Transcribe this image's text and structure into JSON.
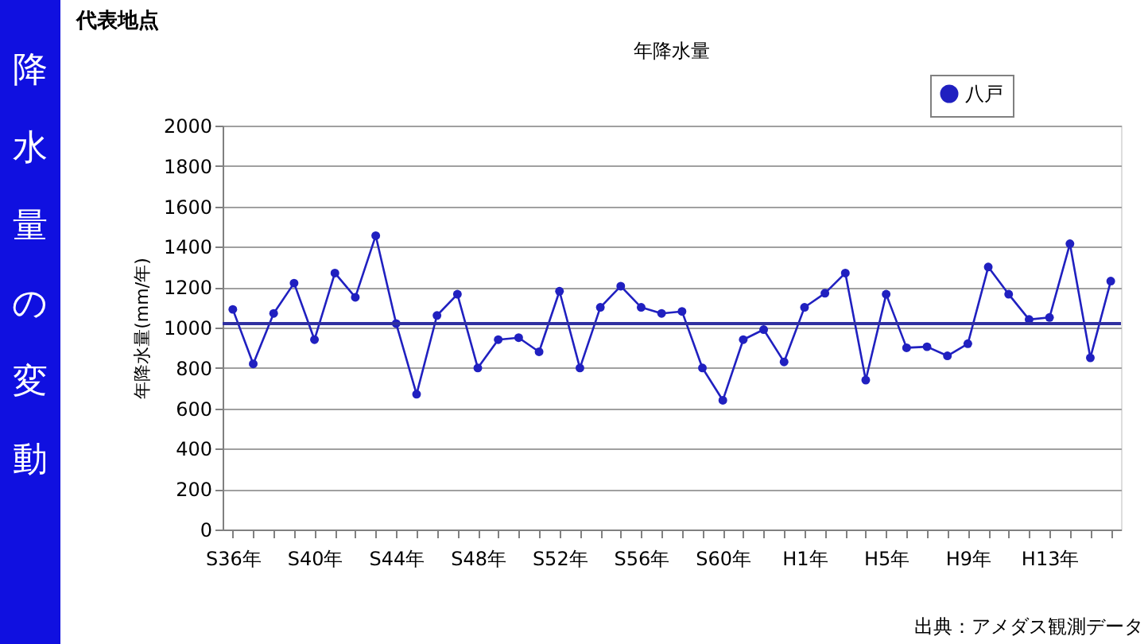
{
  "chart_data": {
    "type": "line",
    "title": "年降水量",
    "ylabel": "年降水量(mm/年)",
    "annotations": [
      "降水量の変動",
      "代表地点",
      "出典：アメダス観測データ"
    ],
    "categories": [
      "S36年",
      null,
      null,
      null,
      "S40年",
      null,
      null,
      null,
      "S44年",
      null,
      null,
      null,
      "S48年",
      null,
      null,
      null,
      "S52年",
      null,
      null,
      null,
      "S56年",
      null,
      null,
      null,
      "S60年",
      null,
      null,
      null,
      "H1年",
      null,
      null,
      null,
      "H5年",
      null,
      null,
      null,
      "H9年",
      null,
      null,
      null,
      "H13年",
      null,
      null,
      null
    ],
    "series": [
      {
        "name": "八戸",
        "color": "#2020c0",
        "values": [
          1090,
          820,
          1070,
          1220,
          940,
          1270,
          1150,
          1455,
          1020,
          670,
          1060,
          1165,
          800,
          940,
          950,
          880,
          1180,
          800,
          1100,
          1205,
          1100,
          1070,
          1080,
          800,
          640,
          940,
          990,
          830,
          1100,
          1170,
          1270,
          740,
          1165,
          900,
          905,
          860,
          920,
          1300,
          1165,
          1040,
          1050,
          1415,
          850,
          1230
        ]
      }
    ],
    "ylim": [
      0,
      2000
    ],
    "yticks": [
      0,
      200,
      400,
      600,
      800,
      1000,
      1200,
      1400,
      1600,
      1800,
      2000
    ],
    "ref_lines": [
      {
        "axis": "y",
        "value": 1020,
        "color": "#3030a0"
      }
    ],
    "grid": "y",
    "legend": "top right",
    "marker": "circle",
    "line_style": "solid"
  }
}
